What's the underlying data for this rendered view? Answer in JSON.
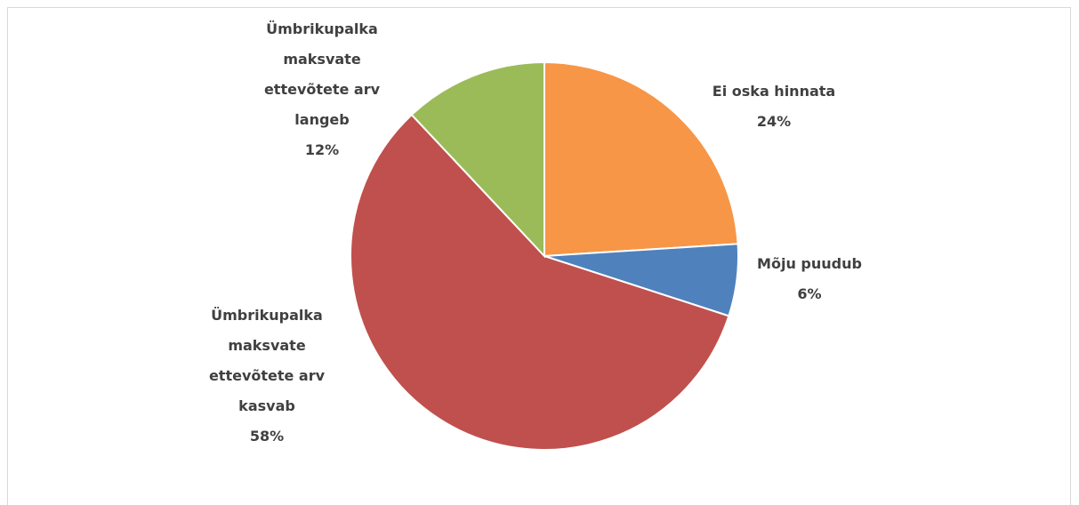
{
  "chart_data": {
    "type": "pie",
    "categories": [
      "Ei oska hinnata",
      "Mõju puudub",
      "Ümbrikupalka maksvate ettevõtete arv kasvab",
      "Ümbrikupalka maksvate ettevõtete arv langeb"
    ],
    "values": [
      24,
      6,
      58,
      12
    ],
    "value_labels": [
      "24%",
      "6%",
      "58%",
      "12%"
    ],
    "colors": [
      "#f79646",
      "#4f81bd",
      "#c0504d",
      "#9bbb59"
    ]
  }
}
